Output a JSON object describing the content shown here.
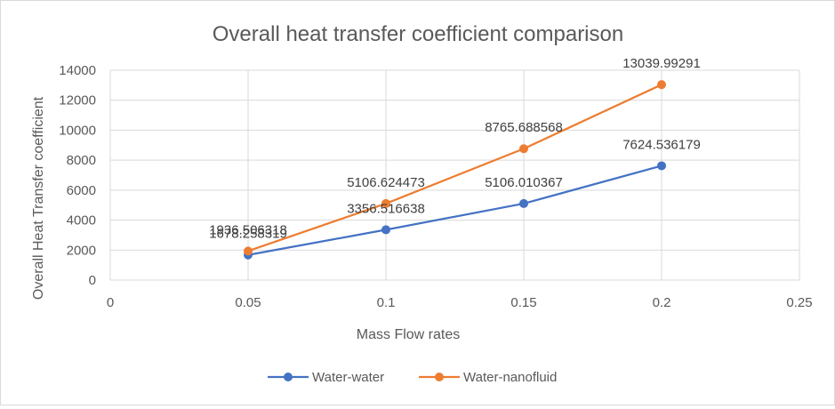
{
  "chart_data": {
    "type": "scatter",
    "title": "Overall heat transfer coefficient comparison",
    "xlabel": "Mass Flow rates",
    "ylabel": "Overall Heat Transfer coefficient",
    "xlim": [
      0,
      0.25
    ],
    "ylim": [
      0,
      14000
    ],
    "x_ticks": [
      0,
      0.05,
      0.1,
      0.15,
      0.2,
      0.25
    ],
    "x_tick_labels": [
      "0",
      "0.05",
      "0.1",
      "0.15",
      "0.2",
      "0.25"
    ],
    "y_ticks": [
      0,
      2000,
      4000,
      6000,
      8000,
      10000,
      12000,
      14000
    ],
    "y_tick_labels": [
      "0",
      "2000",
      "4000",
      "6000",
      "8000",
      "10000",
      "12000",
      "14000"
    ],
    "grid": true,
    "legend_position": "bottom",
    "series": [
      {
        "name": "Water-water",
        "color": "#4472c4",
        "x": [
          0.05,
          0.1,
          0.15,
          0.2
        ],
        "y": [
          1678.258319,
          3356.516638,
          5106.010367,
          7624.536179
        ],
        "labels": [
          "1678.258319",
          "3356.516638",
          "5106.010367",
          "7624.536179"
        ]
      },
      {
        "name": "Water-nanofluid",
        "color": "#ed7d31",
        "x": [
          0.05,
          0.1,
          0.15,
          0.2
        ],
        "y": [
          1936.506318,
          5106.624473,
          8765.688568,
          13039.99291
        ],
        "labels": [
          "1936.506318",
          "5106.624473",
          "8765.688568",
          "13039.99291"
        ]
      }
    ]
  }
}
